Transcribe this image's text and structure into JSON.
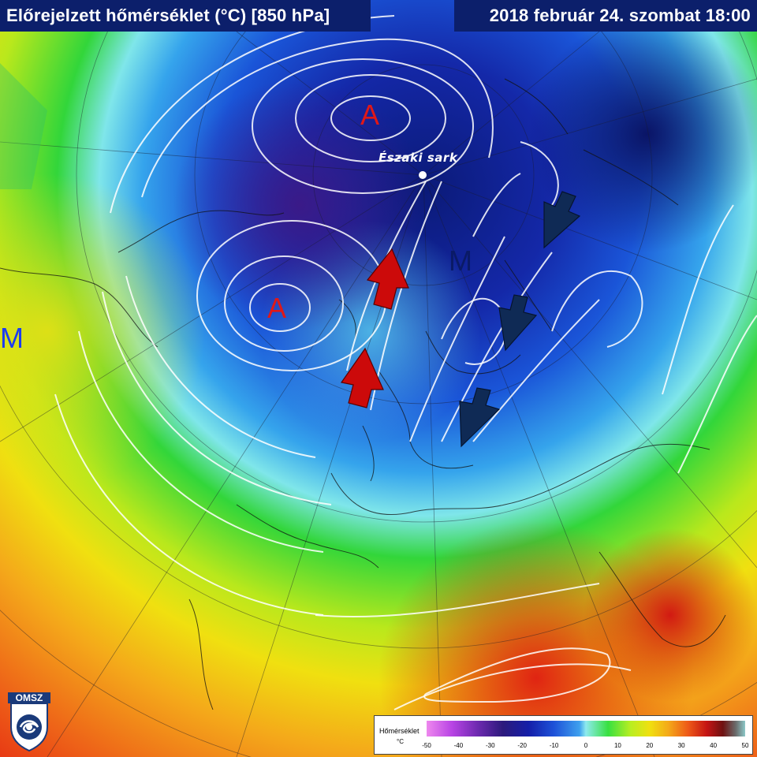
{
  "header": {
    "title": "Előrejelzett hőmérséklet (°C) [850 hPa]",
    "datetime": "2018 február 24. szombat 18:00"
  },
  "map": {
    "pressure_labels": [
      {
        "letter": "A",
        "color": "#e01818"
      },
      {
        "letter": "A",
        "color": "#e01818"
      },
      {
        "letter": "M",
        "color": "#0a1a66"
      },
      {
        "letter": "M",
        "color": "#1c3cf0"
      }
    ],
    "north_pole_label": "Északi sark",
    "arrows": [
      {
        "kind": "warm-advection",
        "color": "#cc0a0a"
      },
      {
        "kind": "warm-advection",
        "color": "#cc0a0a"
      },
      {
        "kind": "cold-advection",
        "color": "#0f2a55"
      },
      {
        "kind": "cold-advection",
        "color": "#0f2a55"
      },
      {
        "kind": "cold-advection",
        "color": "#0f2a55"
      }
    ]
  },
  "legend": {
    "title": "Hőmérséklet",
    "unit": "°C",
    "ticks": [
      "-50",
      "-40",
      "-30",
      "-20",
      "-10",
      "0",
      "10",
      "20",
      "30",
      "40",
      "50"
    ]
  },
  "logo": {
    "text": "OMSZ"
  }
}
